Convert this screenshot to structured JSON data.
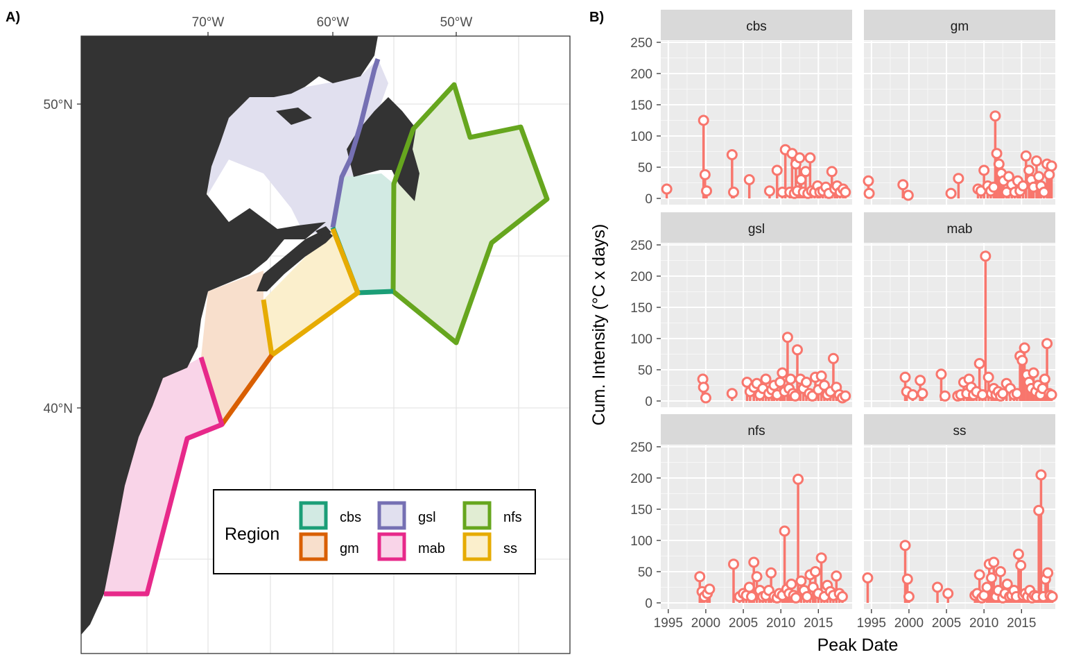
{
  "panels": {
    "a_label": "A)",
    "b_label": "B)"
  },
  "map": {
    "lon_ticks": [
      "70°W",
      "60°W",
      "50°W"
    ],
    "lat_ticks": [
      "50°N",
      "40°N"
    ],
    "legend": {
      "title": "Region",
      "items": [
        {
          "key": "cbs",
          "label": "cbs",
          "color": "#1b9e77"
        },
        {
          "key": "gsl",
          "label": "gsl",
          "color": "#7570b3"
        },
        {
          "key": "nfs",
          "label": "nfs",
          "color": "#66a61e"
        },
        {
          "key": "gm",
          "label": "gm",
          "color": "#d95f02"
        },
        {
          "key": "mab",
          "label": "mab",
          "color": "#e7298a"
        },
        {
          "key": "ss",
          "label": "ss",
          "color": "#e6ab02"
        }
      ]
    },
    "colors": {
      "land": "#333333",
      "cbs": "#1b9e77",
      "gm": "#d95f02",
      "gsl": "#7570b3",
      "mab": "#e7298a",
      "nfs": "#66a61e",
      "ss": "#e6ab02"
    }
  },
  "chart_data": {
    "type": "lollipop",
    "title": "",
    "xlabel": "Peak Date",
    "ylabel": "Cum. Intensity (°C x days)",
    "x_ticks": [
      "1995",
      "2000",
      "2005",
      "2010",
      "2015"
    ],
    "y_ticks": [
      "0",
      "50",
      "100",
      "150",
      "200",
      "250"
    ],
    "xlim": [
      1994,
      2019.5
    ],
    "ylim": [
      0,
      250
    ],
    "grid": true,
    "color": "#f8766d",
    "facets": [
      {
        "name": "cbs",
        "x": [
          1994.8,
          1999.7,
          1999.9,
          2000.1,
          2003.5,
          2003.7,
          2005.8,
          2008.5,
          2009.5,
          2010.2,
          2010.6,
          2011.2,
          2011.5,
          2011.8,
          2012.0,
          2012.2,
          2012.5,
          2012.7,
          2013.0,
          2013.3,
          2013.6,
          2013.9,
          2014.1,
          2014.5,
          2014.9,
          2015.2,
          2015.6,
          2016.0,
          2016.4,
          2016.8,
          2017.2,
          2017.5,
          2017.9,
          2018.3,
          2018.6
        ],
        "y": [
          15,
          125,
          38,
          12,
          70,
          10,
          30,
          12,
          45,
          10,
          78,
          10,
          72,
          8,
          55,
          12,
          65,
          30,
          10,
          43,
          8,
          65,
          12,
          10,
          20,
          10,
          12,
          18,
          8,
          43,
          15,
          20,
          10,
          15,
          10
        ]
      },
      {
        "name": "gm",
        "x": [
          1994.6,
          1994.7,
          1999.2,
          1999.9,
          2005.6,
          2006.6,
          2009.2,
          2009.6,
          2010.0,
          2010.5,
          2010.9,
          2011.3,
          2011.5,
          2011.7,
          2012.0,
          2012.3,
          2012.6,
          2013.0,
          2013.3,
          2013.7,
          2014.1,
          2014.5,
          2014.8,
          2015.2,
          2015.6,
          2016.0,
          2016.3,
          2016.6,
          2017.0,
          2017.3,
          2017.6,
          2018.0,
          2018.4,
          2018.7,
          2019.0
        ],
        "y": [
          28,
          8,
          22,
          5,
          8,
          32,
          15,
          12,
          45,
          20,
          12,
          18,
          132,
          72,
          55,
          40,
          28,
          10,
          35,
          22,
          10,
          28,
          12,
          20,
          68,
          45,
          30,
          18,
          60,
          35,
          20,
          10,
          55,
          38,
          52
        ]
      },
      {
        "name": "gsl",
        "x": [
          1999.6,
          1999.7,
          2000.0,
          2003.5,
          2005.5,
          2005.9,
          2006.4,
          2006.8,
          2007.2,
          2007.6,
          2008.0,
          2008.4,
          2008.8,
          2009.1,
          2009.5,
          2009.9,
          2010.2,
          2010.5,
          2010.9,
          2011.1,
          2011.3,
          2011.6,
          2011.9,
          2012.2,
          2012.6,
          2013.0,
          2013.4,
          2013.8,
          2014.2,
          2014.6,
          2015.0,
          2015.4,
          2015.8,
          2016.2,
          2016.6,
          2017.0,
          2017.4,
          2017.8,
          2018.2,
          2018.6
        ],
        "y": [
          35,
          22,
          5,
          12,
          30,
          15,
          22,
          28,
          10,
          20,
          35,
          12,
          18,
          25,
          10,
          30,
          45,
          15,
          102,
          20,
          35,
          12,
          8,
          82,
          35,
          20,
          30,
          12,
          8,
          38,
          18,
          40,
          25,
          10,
          15,
          68,
          22,
          10,
          5,
          8
        ]
      },
      {
        "name": "mab",
        "x": [
          1999.5,
          1999.7,
          2000.5,
          2001.5,
          2001.8,
          2004.3,
          2004.8,
          2006.5,
          2006.9,
          2007.3,
          2007.7,
          2008.0,
          2008.3,
          2008.6,
          2009.0,
          2009.4,
          2009.8,
          2010.2,
          2010.6,
          2011.0,
          2011.3,
          2011.6,
          2011.9,
          2012.2,
          2012.5,
          2013.0,
          2013.5,
          2014.0,
          2014.4,
          2014.8,
          2015.1,
          2015.4,
          2015.7,
          2016.0,
          2016.3,
          2016.6,
          2016.9,
          2017.2,
          2017.5,
          2017.8,
          2018.1,
          2018.4,
          2018.7,
          2019.0
        ],
        "y": [
          38,
          15,
          10,
          33,
          12,
          43,
          8,
          8,
          10,
          30,
          12,
          35,
          22,
          10,
          15,
          60,
          10,
          232,
          38,
          12,
          20,
          10,
          15,
          8,
          12,
          28,
          20,
          10,
          12,
          72,
          65,
          85,
          42,
          30,
          20,
          45,
          15,
          25,
          10,
          20,
          35,
          92,
          12,
          10
        ]
      },
      {
        "name": "nfs",
        "x": [
          1999.2,
          1999.5,
          1999.8,
          2000.2,
          2000.5,
          2003.7,
          2004.5,
          2005.0,
          2005.4,
          2005.8,
          2006.1,
          2006.4,
          2006.8,
          2007.2,
          2007.6,
          2008.0,
          2008.4,
          2008.7,
          2009.1,
          2009.5,
          2009.8,
          2010.2,
          2010.5,
          2010.8,
          2011.1,
          2011.4,
          2011.7,
          2012.0,
          2012.3,
          2012.7,
          2013.1,
          2013.5,
          2013.9,
          2014.3,
          2014.6,
          2015.0,
          2015.4,
          2015.8,
          2016.2,
          2016.6,
          2017.0,
          2017.4,
          2017.8,
          2018.2
        ],
        "y": [
          42,
          18,
          10,
          15,
          22,
          62,
          10,
          15,
          12,
          25,
          10,
          65,
          42,
          20,
          10,
          12,
          20,
          48,
          10,
          8,
          15,
          12,
          115,
          22,
          15,
          30,
          12,
          8,
          198,
          35,
          20,
          10,
          45,
          25,
          50,
          15,
          72,
          10,
          28,
          18,
          12,
          43,
          15,
          10
        ]
      },
      {
        "name": "ss",
        "x": [
          1994.5,
          1999.5,
          1999.8,
          2000.0,
          2003.8,
          2005.2,
          2008.8,
          2009.1,
          2009.4,
          2009.7,
          2010.0,
          2010.4,
          2010.7,
          2011.0,
          2011.3,
          2011.6,
          2011.9,
          2012.2,
          2012.5,
          2012.8,
          2013.1,
          2013.4,
          2013.7,
          2014.0,
          2014.3,
          2014.6,
          2014.9,
          2015.2,
          2015.5,
          2015.8,
          2016.1,
          2016.4,
          2016.7,
          2017.0,
          2017.3,
          2017.6,
          2017.9,
          2018.2,
          2018.5,
          2018.8,
          2019.1
        ],
        "y": [
          40,
          92,
          38,
          10,
          25,
          15,
          12,
          15,
          45,
          8,
          12,
          25,
          62,
          40,
          65,
          10,
          20,
          50,
          8,
          15,
          30,
          10,
          12,
          20,
          10,
          78,
          60,
          12,
          15,
          10,
          20,
          8,
          12,
          10,
          148,
          205,
          10,
          38,
          48,
          12,
          10
        ]
      }
    ]
  }
}
